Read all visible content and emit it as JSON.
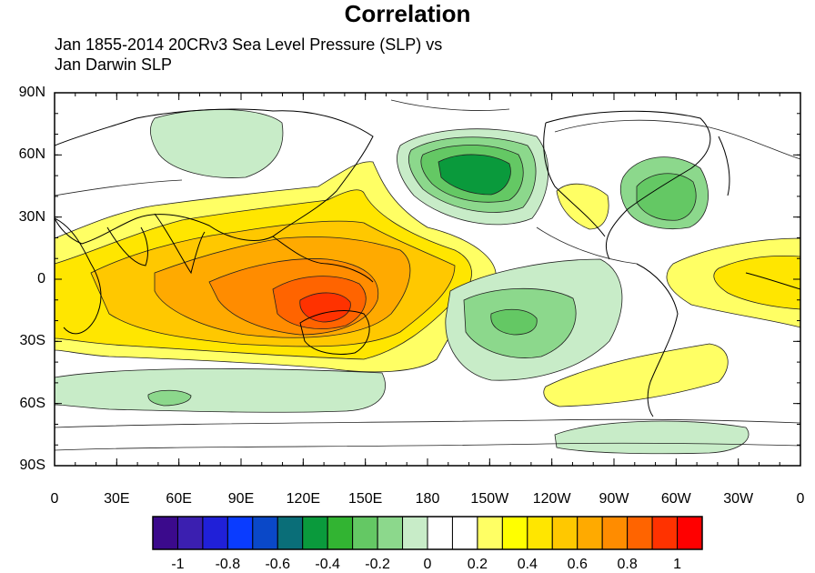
{
  "title": "Correlation",
  "subtitle_line1": "Jan 1855-2014 20CRv3 Sea Level Pressure (SLP) vs",
  "subtitle_line2": "Jan Darwin SLP",
  "lat_labels": [
    "90N",
    "60N",
    "30N",
    "0",
    "30S",
    "60S",
    "90S"
  ],
  "lon_labels": [
    "0",
    "30E",
    "60E",
    "90E",
    "120E",
    "150E",
    "180",
    "150W",
    "120W",
    "90W",
    "60W",
    "30W",
    "0"
  ],
  "colorbar": {
    "colors": [
      "#3b0a8c",
      "#3b1fb0",
      "#2020d8",
      "#0a3cff",
      "#0a48c8",
      "#0a6e78",
      "#0a9a3c",
      "#32b432",
      "#64c864",
      "#8cd88c",
      "#c8ecc8",
      "#ffffff",
      "#ffffff",
      "#ffff64",
      "#ffff00",
      "#ffe600",
      "#ffc800",
      "#ffaa00",
      "#ff8c00",
      "#ff6400",
      "#ff3200",
      "#ff0000"
    ],
    "labels": [
      "-1",
      "-0.8",
      "-0.6",
      "-0.4",
      "-0.2",
      "0",
      "0.2",
      "0.4",
      "0.6",
      "0.8",
      "1"
    ]
  },
  "legend_colors": {
    "negative_strong": "#0a9a3c",
    "negative_mid": "#64c864",
    "negative_weak": "#c8ecc8",
    "positive_weak": "#ffff64",
    "positive_mid": "#ffc800",
    "positive_strong": "#ff6400"
  }
}
